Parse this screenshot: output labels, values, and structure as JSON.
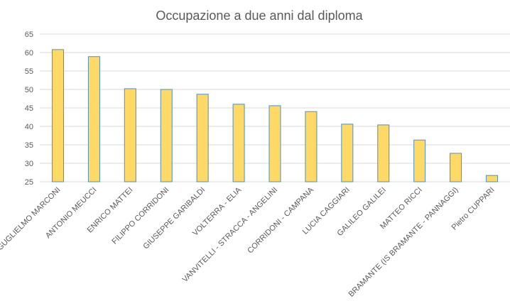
{
  "chart_data": {
    "type": "bar",
    "title": "Occupazione a due anni dal diploma",
    "categories": [
      "GUGLIELMO MARCONI",
      "ANTONIO MEUCCI",
      "ENRICO MATTEI",
      "FILIPPO CORRIDONI",
      "GIUSEPPE GARIBALDI",
      "VOLTERRA - ELIA",
      "VANVITELLI - STRACCA - ANGELINI",
      "CORRIDONI - CAMPANA",
      "LUCIA CAGGIARI",
      "GALILEO GALILEI",
      "MATTEO RICCI",
      "BRAMANTE (IS BRAMANTE - PANNAGGI)",
      "Pietro CUPPARI"
    ],
    "values": [
      60.8,
      58.9,
      50.2,
      50,
      48.7,
      46,
      45.6,
      44,
      40.6,
      40.4,
      36.3,
      32.7,
      26.7
    ],
    "color": "#ffd966",
    "edge_color": "#4a90c8",
    "ylim": [
      25,
      65
    ],
    "yticks": [
      25,
      30,
      35,
      40,
      45,
      50,
      55,
      60,
      65
    ],
    "grid": true
  }
}
